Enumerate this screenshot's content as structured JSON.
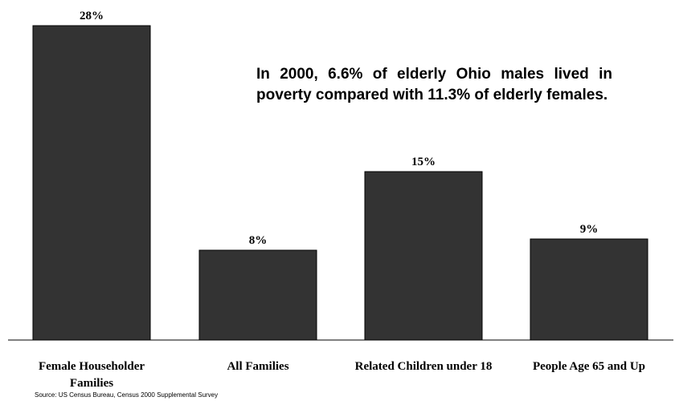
{
  "chart_data": {
    "type": "bar",
    "categories": [
      "Female Householder Families",
      "All Families",
      "Related Children under 18",
      "People Age 65 and Up"
    ],
    "values": [
      28,
      8,
      15,
      9
    ],
    "value_labels": [
      "28%",
      "8%",
      "15%",
      "9%"
    ],
    "ylim": [
      0,
      30
    ],
    "grid": false,
    "bar_color": "#333333"
  },
  "annotation": "In 2000, 6.6% of elderly Ohio males lived in poverty compared with 11.3% of elderly females.",
  "source": "Source: US Census Bureau, Census 2000 Supplemental Survey"
}
